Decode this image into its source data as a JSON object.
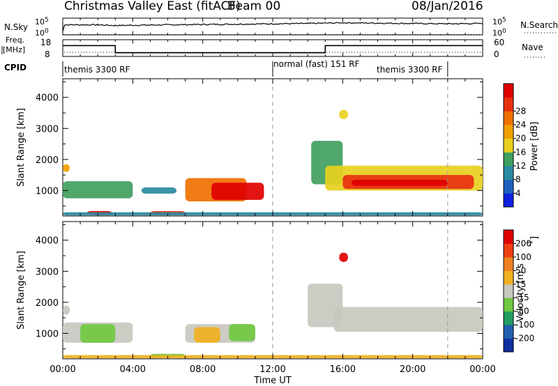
{
  "header": {
    "title": "Christmas Valley East (fitACF)",
    "beam": "Beam 00",
    "date": "08/Jan/2016"
  },
  "chart_data": [
    {
      "type": "line",
      "panel": "sky-search",
      "left_label": "N.Sky",
      "right_label": "N.Search",
      "left_ticks": [
        "10^5",
        "10^0"
      ],
      "right_ticks": [
        "10^5",
        "10^0"
      ],
      "series": [
        {
          "name": "N.Sky",
          "style": "solid",
          "x": [
            0,
            0.1,
            2,
            3,
            6,
            10,
            14,
            16,
            18,
            20,
            22,
            24
          ],
          "y": [
            1,
            3,
            3,
            2.8,
            3,
            3.2,
            3.4,
            3.6,
            3.5,
            3.4,
            3.3,
            3.4
          ]
        },
        {
          "name": "N.Search",
          "style": "dotted"
        }
      ]
    },
    {
      "type": "line",
      "panel": "freq-nave",
      "left_label": "Freq. [MHz]",
      "right_label": "Nave",
      "left_ticks": [
        "18",
        "8"
      ],
      "right_ticks": [
        "60",
        "0"
      ],
      "ylim": [
        8,
        18
      ],
      "series": [
        {
          "name": "Freq",
          "style": "solid",
          "x": [
            0,
            3,
            3,
            15,
            15,
            24
          ],
          "y": [
            14.5,
            14.5,
            10.2,
            10.2,
            14.5,
            14.5
          ]
        },
        {
          "name": "Nave",
          "style": "dotted",
          "x": [
            0,
            24
          ],
          "y": [
            10.5,
            10.5
          ]
        }
      ]
    },
    {
      "type": "table",
      "panel": "cpid",
      "label": "CPID",
      "segments": [
        {
          "name": "themis 3300 RF",
          "start": 0,
          "end": 12
        },
        {
          "name": "normal (fast) 151 RF",
          "start": 12,
          "end": 22
        },
        {
          "name": "themis 3300 RF",
          "start": 22,
          "end": 24
        }
      ]
    },
    {
      "type": "heatmap",
      "panel": "power",
      "ylabel": "Slant Range [km]",
      "yticks": [
        1000,
        2000,
        3000,
        4000
      ],
      "ylim": [
        180,
        4600
      ],
      "colorbar": {
        "label": "Power [dB]",
        "ticks": [
          "4",
          "8",
          "12",
          "16",
          "20",
          "24",
          "28"
        ],
        "colors": [
          "#1020e0",
          "#2060c0",
          "#2a8aa0",
          "#40a060",
          "#e8d020",
          "#f0a000",
          "#f07000",
          "#e83010",
          "#e00000"
        ]
      },
      "dashed_x": [
        12,
        22
      ],
      "regions": [
        {
          "x0": 0.0,
          "x1": 4.0,
          "r0": 750,
          "r1": 1300,
          "level": 3
        },
        {
          "x0": 0.0,
          "x1": 0.4,
          "r0": 1600,
          "r1": 1850,
          "level": 5
        },
        {
          "x0": 1.4,
          "x1": 2.8,
          "r0": 220,
          "r1": 340,
          "level": 8
        },
        {
          "x0": 5.0,
          "x1": 7.0,
          "r0": 220,
          "r1": 340,
          "level": 7
        },
        {
          "x0": 7.0,
          "x1": 10.5,
          "r0": 650,
          "r1": 1400,
          "level": 6
        },
        {
          "x0": 8.5,
          "x1": 11.5,
          "r0": 700,
          "r1": 1250,
          "level": 8
        },
        {
          "x0": 4.5,
          "x1": 6.5,
          "r0": 900,
          "r1": 1100,
          "level": 2
        },
        {
          "x0": 0.0,
          "x1": 24.0,
          "r0": 200,
          "r1": 300,
          "level": 2
        },
        {
          "x0": 14.2,
          "x1": 16.0,
          "r0": 1200,
          "r1": 2600,
          "level": 3
        },
        {
          "x0": 15.0,
          "x1": 24.0,
          "r0": 1000,
          "r1": 1800,
          "level": 4
        },
        {
          "x0": 16.0,
          "x1": 23.5,
          "r0": 1050,
          "r1": 1500,
          "level": 7
        },
        {
          "x0": 16.5,
          "x1": 22.0,
          "r0": 1150,
          "r1": 1350,
          "level": 8
        },
        {
          "x0": 15.8,
          "x1": 16.3,
          "r0": 3300,
          "r1": 3600,
          "level": 4
        }
      ]
    },
    {
      "type": "heatmap",
      "panel": "velocity",
      "ylabel": "Slant Range [km]",
      "xlabel": "Time UT",
      "yticks": [
        1000,
        2000,
        3000,
        4000
      ],
      "xticks": [
        "00:00",
        "04:00",
        "08:00",
        "12:00",
        "16:00",
        "20:00",
        "00:00"
      ],
      "ylim": [
        180,
        4600
      ],
      "colorbar": {
        "label": "Velocity [m s^-1]",
        "ticks": [
          "200",
          "100",
          "50",
          "15",
          "-15",
          "-50",
          "-100",
          "-200"
        ],
        "colors": [
          "#1030a0",
          "#2060b0",
          "#20a060",
          "#70c840",
          "#c8c8c0",
          "#f0b020",
          "#f08020",
          "#f04010",
          "#e00000"
        ]
      },
      "dashed_x": [
        12,
        22
      ],
      "regions": [
        {
          "x0": 0.0,
          "x1": 4.0,
          "r0": 700,
          "r1": 1350,
          "level": 4
        },
        {
          "x0": 1.0,
          "x1": 3.0,
          "r0": 700,
          "r1": 1300,
          "level": 3
        },
        {
          "x0": 0.0,
          "x1": 0.4,
          "r0": 1600,
          "r1": 1900,
          "level": 4
        },
        {
          "x0": 7.0,
          "x1": 11.0,
          "r0": 700,
          "r1": 1300,
          "level": 4
        },
        {
          "x0": 7.5,
          "x1": 9.0,
          "r0": 700,
          "r1": 1200,
          "level": 5
        },
        {
          "x0": 9.5,
          "x1": 11.0,
          "r0": 750,
          "r1": 1300,
          "level": 3
        },
        {
          "x0": 5.0,
          "x1": 7.0,
          "r0": 220,
          "r1": 340,
          "level": 3
        },
        {
          "x0": 0.0,
          "x1": 24.0,
          "r0": 200,
          "r1": 300,
          "level": 5
        },
        {
          "x0": 14.0,
          "x1": 16.0,
          "r0": 1200,
          "r1": 2600,
          "level": 4
        },
        {
          "x0": 15.5,
          "x1": 24.0,
          "r0": 1050,
          "r1": 1850,
          "level": 4
        },
        {
          "x0": 15.8,
          "x1": 16.3,
          "r0": 3300,
          "r1": 3600,
          "level": 8
        }
      ]
    }
  ]
}
